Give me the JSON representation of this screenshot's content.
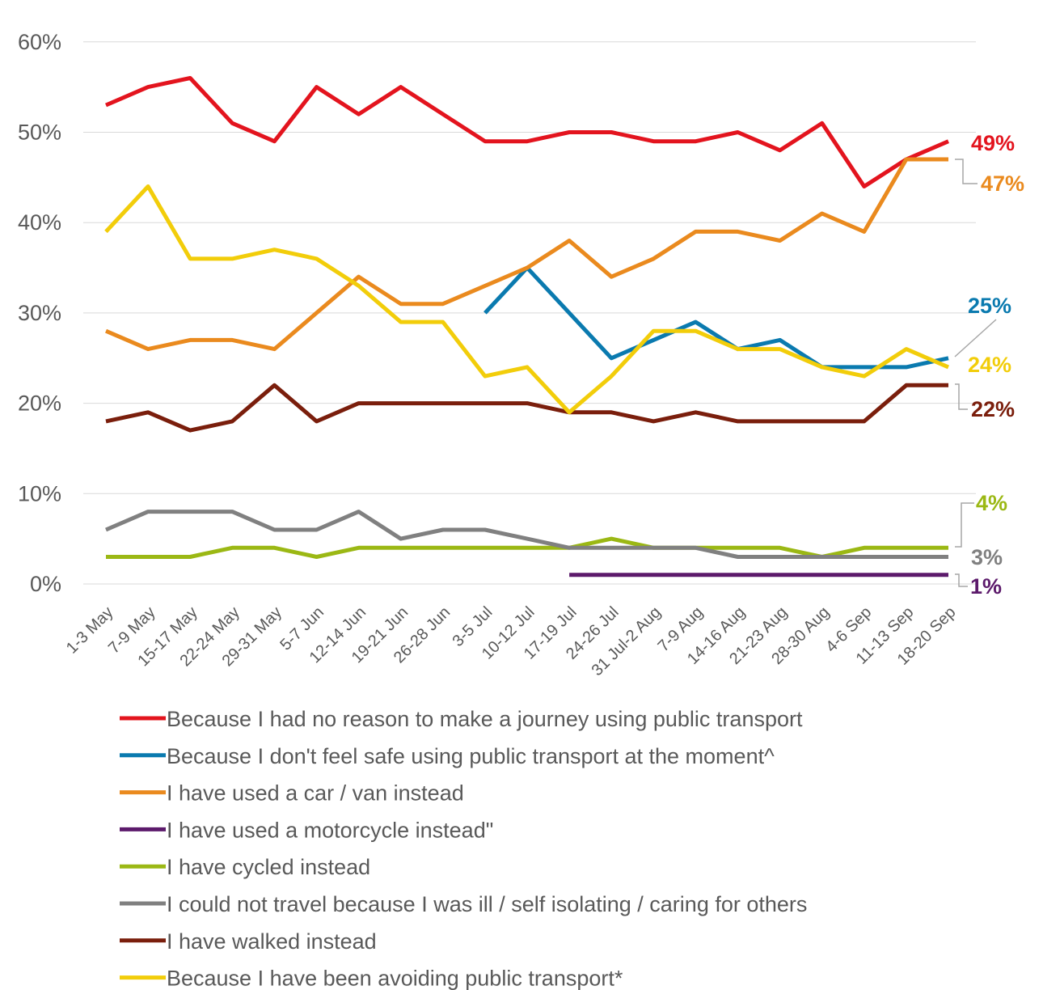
{
  "chart_data": {
    "type": "line",
    "title": "",
    "xlabel": "",
    "ylabel": "",
    "ylim": [
      0,
      60
    ],
    "yticks": [
      "0%",
      "10%",
      "20%",
      "30%",
      "40%",
      "50%",
      "60%"
    ],
    "grid": true,
    "legend_position": "bottom",
    "categories": [
      "1-3 May",
      "7-9 May",
      "15-17 May",
      "22-24 May",
      "29-31 May",
      "5-7 Jun",
      "12-14 Jun",
      "19-21 Jun",
      "26-28 Jun",
      "3-5 Jul",
      "10-12 Jul",
      "17-19 Jul",
      "24-26 Jul",
      "31 Jul-2 Aug",
      "7-9 Aug",
      "14-16 Aug",
      "21-23 Aug",
      "28-30 Aug",
      "4-6 Sep",
      "11-13 Sep",
      "18-20 Sep"
    ],
    "series": [
      {
        "name": "Because I had no reason to make a journey using public transport",
        "color": "#e3141e",
        "end_label": "49%",
        "values": [
          53,
          55,
          56,
          51,
          49,
          55,
          52,
          55,
          52,
          49,
          49,
          50,
          50,
          49,
          49,
          50,
          48,
          51,
          44,
          47,
          49
        ]
      },
      {
        "name": "Because I don't feel safe using public transport at the moment^",
        "color": "#0a7aaf",
        "end_label": "25%",
        "values": [
          null,
          null,
          null,
          null,
          null,
          null,
          null,
          null,
          null,
          30,
          35,
          30,
          25,
          27,
          29,
          26,
          27,
          24,
          24,
          24,
          25
        ]
      },
      {
        "name": "I have used a car / van instead",
        "color": "#ea8a1e",
        "end_label": "47%",
        "values": [
          28,
          26,
          27,
          27,
          26,
          30,
          34,
          31,
          31,
          33,
          35,
          38,
          34,
          36,
          39,
          39,
          38,
          41,
          39,
          47,
          47
        ]
      },
      {
        "name": "I have used a motorcycle instead\"",
        "color": "#5c1a6b",
        "end_label": "1%",
        "values": [
          null,
          null,
          null,
          null,
          null,
          null,
          null,
          null,
          null,
          null,
          null,
          1,
          1,
          1,
          1,
          1,
          1,
          1,
          1,
          1,
          1
        ]
      },
      {
        "name": "I have cycled instead",
        "color": "#9bb814",
        "end_label": "4%",
        "values": [
          3,
          3,
          3,
          4,
          4,
          3,
          4,
          4,
          4,
          4,
          4,
          4,
          5,
          4,
          4,
          4,
          4,
          3,
          4,
          4,
          4
        ]
      },
      {
        "name": "I could not travel because I was ill / self isolating / caring for others",
        "color": "#808080",
        "end_label": "3%",
        "values": [
          6,
          8,
          8,
          8,
          6,
          6,
          8,
          5,
          6,
          6,
          5,
          4,
          4,
          4,
          4,
          3,
          3,
          3,
          3,
          3,
          3
        ]
      },
      {
        "name": "I have walked instead",
        "color": "#7a1e0c",
        "end_label": "22%",
        "values": [
          18,
          19,
          17,
          18,
          22,
          18,
          20,
          20,
          20,
          20,
          20,
          19,
          19,
          18,
          19,
          18,
          18,
          18,
          18,
          22,
          22
        ]
      },
      {
        "name": "Because I have been avoiding public transport*",
        "color": "#f2cd0a",
        "end_label": "24%",
        "values": [
          39,
          44,
          36,
          36,
          37,
          36,
          33,
          29,
          29,
          23,
          24,
          19,
          23,
          28,
          28,
          26,
          26,
          24,
          23,
          26,
          24
        ]
      }
    ]
  }
}
